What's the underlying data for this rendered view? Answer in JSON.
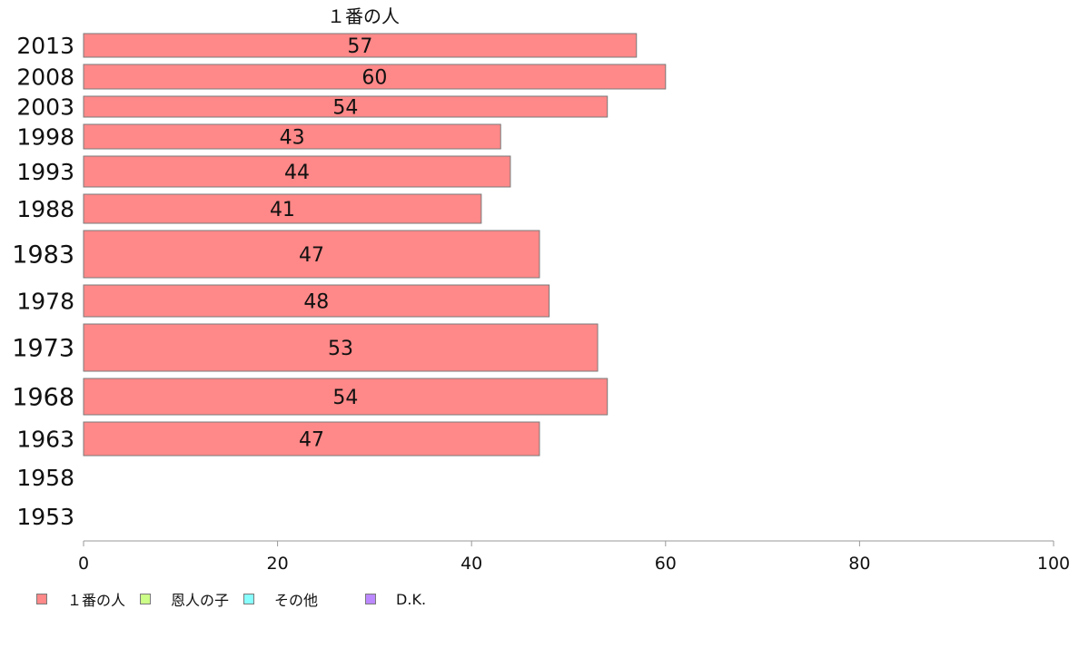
{
  "chart_data": {
    "type": "bar",
    "orientation": "horizontal",
    "title": "",
    "xlabel": "",
    "ylabel": "",
    "xlim": [
      0,
      100
    ],
    "xticks": [
      0,
      20,
      40,
      60,
      80,
      100
    ],
    "grid": false,
    "legend_position": "bottom-left",
    "categories": [
      "2013",
      "2008",
      "2003",
      "1998",
      "1993",
      "1988",
      "1983",
      "1978",
      "1973",
      "1968",
      "1963",
      "1958",
      "1953"
    ],
    "series": [
      {
        "name": "１番の人",
        "color": "#ff8888",
        "values": [
          57,
          60,
          54,
          43,
          44,
          41,
          47,
          48,
          53,
          54,
          47,
          null,
          null
        ],
        "labels": [
          "57",
          "60",
          "54",
          "43",
          "44",
          "41",
          "47",
          "48",
          "53",
          "54",
          "47",
          "",
          ""
        ]
      }
    ],
    "series_header": "１番の人",
    "legend": [
      {
        "label": "１番の人",
        "color": "#ff8888"
      },
      {
        "label": "恩人の子",
        "color": "#ccff88"
      },
      {
        "label": "その他",
        "color": "#88ffff"
      },
      {
        "label": "D.K.",
        "color": "#bb88ff"
      }
    ]
  }
}
